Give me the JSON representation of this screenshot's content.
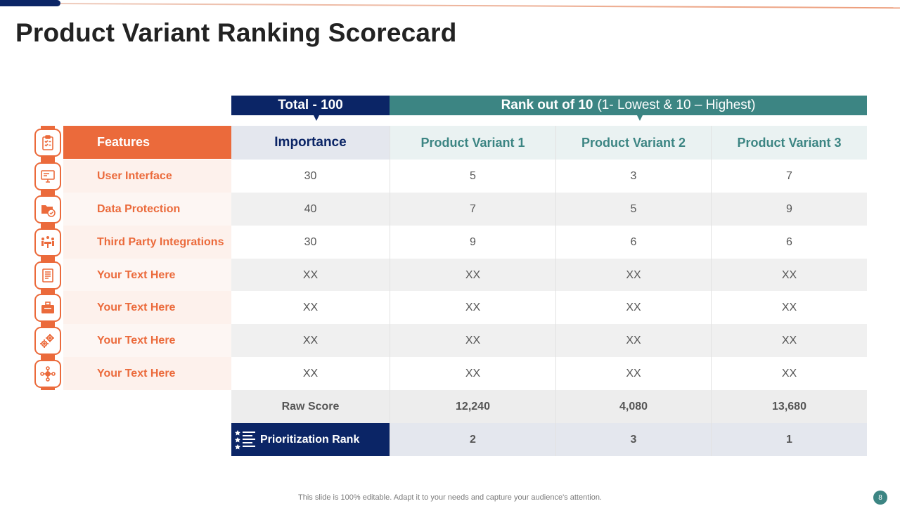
{
  "title": "Product Variant Ranking Scorecard",
  "header": {
    "total_label": "Total - 100",
    "rank_label_bold": "Rank out of 10",
    "rank_label_note": "(1- Lowest & 10 – Highest)"
  },
  "columns": {
    "features": "Features",
    "importance": "Importance",
    "variant1": "Product Variant 1",
    "variant2": "Product Variant 2",
    "variant3": "Product Variant 3"
  },
  "rows": [
    {
      "feature": "User Interface",
      "icon": "monitor-icon",
      "importance": "30",
      "v1": "5",
      "v2": "3",
      "v3": "7"
    },
    {
      "feature": "Data Protection",
      "icon": "secure-folder-icon",
      "importance": "40",
      "v1": "7",
      "v2": "5",
      "v3": "9"
    },
    {
      "feature": "Third Party Integrations",
      "icon": "team-meeting-icon",
      "importance": "30",
      "v1": "9",
      "v2": "6",
      "v3": "6"
    },
    {
      "feature": "Your Text Here",
      "icon": "document-icon",
      "importance": "XX",
      "v1": "XX",
      "v2": "XX",
      "v3": "XX"
    },
    {
      "feature": "Your Text Here",
      "icon": "briefcase-icon",
      "importance": "XX",
      "v1": "XX",
      "v2": "XX",
      "v3": "XX"
    },
    {
      "feature": "Your Text Here",
      "icon": "gears-icon",
      "importance": "XX",
      "v1": "XX",
      "v2": "XX",
      "v3": "XX"
    },
    {
      "feature": "Your Text Here",
      "icon": "network-icon",
      "importance": "XX",
      "v1": "XX",
      "v2": "XX",
      "v3": "XX"
    }
  ],
  "raw_score": {
    "label": "Raw Score",
    "v1": "12,240",
    "v2": "4,080",
    "v3": "13,680"
  },
  "prioritization_rank": {
    "label": "Prioritization Rank",
    "v1": "2",
    "v2": "3",
    "v3": "1"
  },
  "footer": "This slide is 100% editable. Adapt it to your needs and capture your audience's attention.",
  "page_number": "8",
  "colors": {
    "navy": "#0b2566",
    "teal": "#3c8583",
    "orange": "#eb6a3b"
  }
}
